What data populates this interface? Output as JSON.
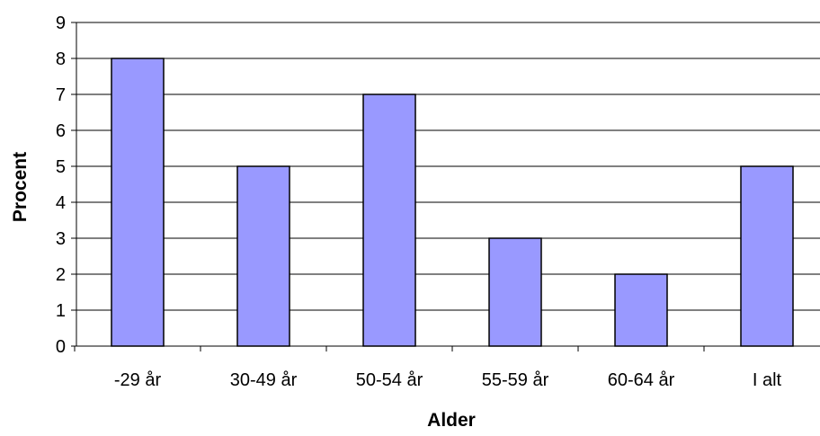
{
  "chart_data": {
    "type": "bar",
    "categories": [
      "-29 år",
      "30-49 år",
      "50-54 år",
      "55-59 år",
      "60-64 år",
      "I alt"
    ],
    "values": [
      8,
      5,
      7,
      3,
      2,
      5
    ],
    "xlabel": "Alder",
    "ylabel": "Procent",
    "ylim": [
      0,
      9
    ],
    "yticks": [
      0,
      1,
      2,
      3,
      4,
      5,
      6,
      7,
      8,
      9
    ],
    "grid": true,
    "legend": "none",
    "colors": {
      "bar_fill": "#9999FF",
      "bar_stroke": "#000000",
      "grid": "#000000",
      "axis": "#000000"
    }
  }
}
